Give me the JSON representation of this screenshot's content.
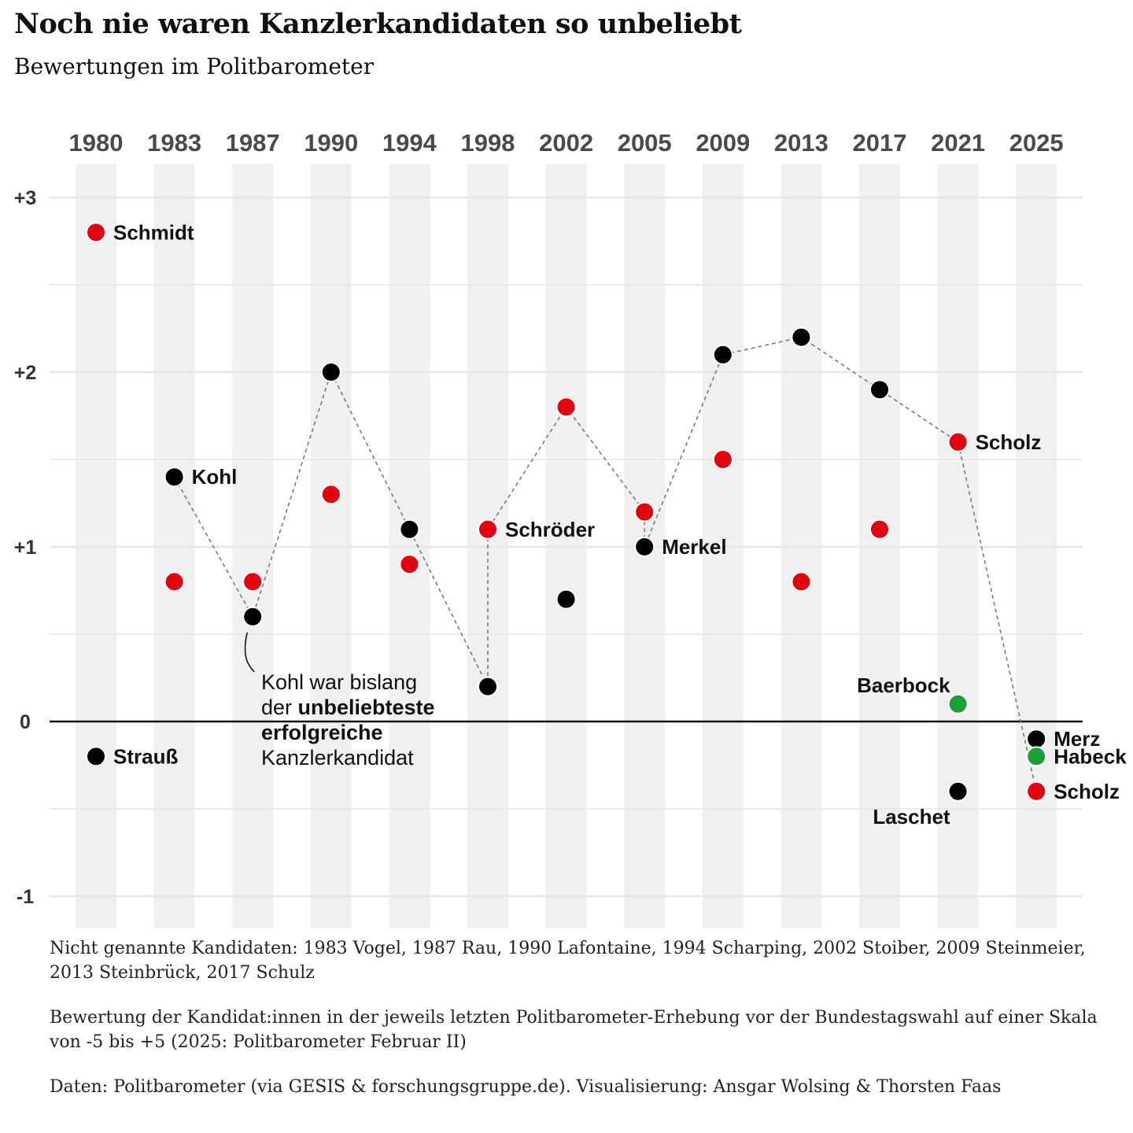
{
  "title": "Noch nie waren Kanzlerkandidaten so unbeliebt",
  "subtitle": "Bewertungen im Politbarometer",
  "colors": {
    "spd": "#e3000f",
    "union": "#000000",
    "gruene": "#1aa037",
    "band": "#f0f0f0",
    "grid": "#e6e6e6",
    "connector": "#7a7a7a"
  },
  "chart_data": {
    "type": "scatter",
    "x": [
      "1980",
      "1983",
      "1987",
      "1990",
      "1994",
      "1998",
      "2002",
      "2005",
      "2009",
      "2013",
      "2017",
      "2021",
      "2025"
    ],
    "ylim": [
      -1.2,
      3.2
    ],
    "y_ticks": [
      {
        "value": 3,
        "label": "+3"
      },
      {
        "value": 2,
        "label": "+2"
      },
      {
        "value": 1,
        "label": "+1"
      },
      {
        "value": 0,
        "label": "0"
      },
      {
        "value": -1,
        "label": "-1"
      }
    ],
    "grid": true,
    "points": [
      {
        "year": "1980",
        "value": 2.8,
        "party": "spd",
        "name": "Schmidt",
        "label_side": "right"
      },
      {
        "year": "1980",
        "value": -0.2,
        "party": "union",
        "name": "Strauß",
        "label_side": "right"
      },
      {
        "year": "1983",
        "value": 1.4,
        "party": "union",
        "name": "Kohl",
        "label_side": "right"
      },
      {
        "year": "1983",
        "value": 0.8,
        "party": "spd",
        "name": ""
      },
      {
        "year": "1987",
        "value": 0.8,
        "party": "spd",
        "name": ""
      },
      {
        "year": "1987",
        "value": 0.6,
        "party": "union",
        "name": ""
      },
      {
        "year": "1990",
        "value": 2.0,
        "party": "union",
        "name": ""
      },
      {
        "year": "1990",
        "value": 1.3,
        "party": "spd",
        "name": ""
      },
      {
        "year": "1994",
        "value": 1.1,
        "party": "union",
        "name": ""
      },
      {
        "year": "1994",
        "value": 0.9,
        "party": "spd",
        "name": ""
      },
      {
        "year": "1998",
        "value": 1.1,
        "party": "spd",
        "name": "Schröder",
        "label_side": "right"
      },
      {
        "year": "1998",
        "value": 0.2,
        "party": "union",
        "name": ""
      },
      {
        "year": "2002",
        "value": 1.8,
        "party": "spd",
        "name": ""
      },
      {
        "year": "2002",
        "value": 0.7,
        "party": "union",
        "name": ""
      },
      {
        "year": "2005",
        "value": 1.2,
        "party": "spd",
        "name": ""
      },
      {
        "year": "2005",
        "value": 1.0,
        "party": "union",
        "name": "Merkel",
        "label_side": "right"
      },
      {
        "year": "2009",
        "value": 2.1,
        "party": "union",
        "name": ""
      },
      {
        "year": "2009",
        "value": 1.5,
        "party": "spd",
        "name": ""
      },
      {
        "year": "2013",
        "value": 2.2,
        "party": "union",
        "name": ""
      },
      {
        "year": "2013",
        "value": 0.8,
        "party": "spd",
        "name": ""
      },
      {
        "year": "2017",
        "value": 1.9,
        "party": "union",
        "name": ""
      },
      {
        "year": "2017",
        "value": 1.1,
        "party": "spd",
        "name": ""
      },
      {
        "year": "2021",
        "value": 1.6,
        "party": "spd",
        "name": "Scholz",
        "label_side": "right"
      },
      {
        "year": "2021",
        "value": 0.1,
        "party": "gruene",
        "name": "Baerbock",
        "label_side": "above-left"
      },
      {
        "year": "2021",
        "value": -0.4,
        "party": "union",
        "name": "Laschet",
        "label_side": "below-left"
      },
      {
        "year": "2025",
        "value": -0.1,
        "party": "union",
        "name": "Merz",
        "label_side": "right"
      },
      {
        "year": "2025",
        "value": -0.2,
        "party": "gruene",
        "name": "Habeck",
        "label_side": "right"
      },
      {
        "year": "2025",
        "value": -0.4,
        "party": "spd",
        "name": "Scholz",
        "label_side": "right"
      }
    ],
    "connector_path": [
      {
        "year": "1983",
        "value": 1.4
      },
      {
        "year": "1987",
        "value": 0.6
      },
      {
        "year": "1990",
        "value": 2.0
      },
      {
        "year": "1994",
        "value": 1.1
      },
      {
        "year": "1998",
        "value": 0.2
      },
      {
        "year": "1998",
        "value": 1.1
      },
      {
        "year": "2002",
        "value": 1.8
      },
      {
        "year": "2005",
        "value": 1.2
      },
      {
        "year": "2005",
        "value": 1.0
      },
      {
        "year": "2009",
        "value": 2.1
      },
      {
        "year": "2013",
        "value": 2.2
      },
      {
        "year": "2017",
        "value": 1.9
      },
      {
        "year": "2021",
        "value": 1.6
      },
      {
        "year": "2025",
        "value": -0.4
      }
    ],
    "annotation": {
      "target_year": "1987",
      "target_value": 0.6,
      "lines": [
        [
          {
            "text": "Kohl war bislang",
            "bold": false
          }
        ],
        [
          {
            "text": "der ",
            "bold": false
          },
          {
            "text": "unbeliebteste",
            "bold": true
          }
        ],
        [
          {
            "text": "erfolgreiche",
            "bold": true
          }
        ],
        [
          {
            "text": "Kanzlerkandidat",
            "bold": false
          }
        ]
      ]
    }
  },
  "notes": [
    "Nicht genannte Kandidaten: 1983 Vogel, 1987 Rau, 1990 Lafontaine, 1994 Scharping, 2002 Stoiber, 2009 Steinmeier, 2013 Steinbrück, 2017 Schulz",
    "Bewertung der Kandidat:innen in der jeweils letzten Politbarometer-Erhebung vor der Bundestagswahl auf einer Skala von -5 bis +5 (2025: Politbarometer Februar II)",
    "Daten: Politbarometer (via GESIS & forschungsgruppe.de). Visualisierung: Ansgar Wolsing & Thorsten Faas"
  ]
}
